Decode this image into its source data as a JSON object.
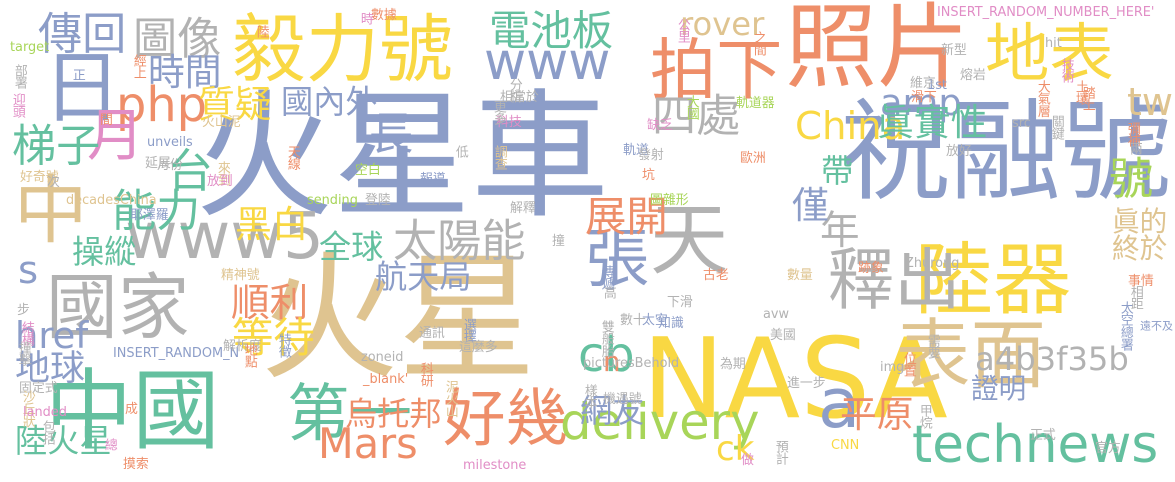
{
  "palette": {
    "orange": "#ee8e69",
    "slate": "#8c9dc8",
    "gold": "#dfc490",
    "yellow": "#f9d843",
    "green": "#64c09f",
    "lime": "#a8d559",
    "pink": "#e18dc6",
    "gray": "#b2b2b2"
  },
  "words": [
    {
      "text": "火星車",
      "color": "slate"
    },
    {
      "text": "火星",
      "color": "gold"
    },
    {
      "text": "祝融號",
      "color": "slate"
    },
    {
      "text": "NASA",
      "color": "yellow"
    },
    {
      "text": "照片",
      "color": "orange"
    },
    {
      "text": "中國",
      "color": "green"
    },
    {
      "text": "毅力號",
      "color": "yellow"
    },
    {
      "text": "國家",
      "color": "gray"
    },
    {
      "text": "陸器",
      "color": "yellow"
    },
    {
      "text": "表面",
      "color": "gold"
    },
    {
      "text": "地表",
      "color": "yellow"
    },
    {
      "text": "張",
      "color": "slate"
    },
    {
      "text": "天",
      "color": "gray"
    },
    {
      "text": "拍下",
      "color": "orange"
    },
    {
      "text": "www5",
      "color": "gray"
    },
    {
      "text": "釋出",
      "color": "gray"
    },
    {
      "text": "technews",
      "color": "green"
    },
    {
      "text": "好幾",
      "color": "orange"
    },
    {
      "text": "日",
      "color": "slate"
    },
    {
      "text": "中",
      "color": "gold"
    },
    {
      "text": "www",
      "color": "slate"
    },
    {
      "text": "第一",
      "color": "green"
    },
    {
      "text": "delivery",
      "color": "lime"
    },
    {
      "text": "電池板",
      "color": "green"
    },
    {
      "text": "圖像",
      "color": "gray"
    },
    {
      "text": "傳回",
      "color": "slate"
    },
    {
      "text": "rover",
      "color": "gold"
    },
    {
      "text": "amp",
      "color": "slate"
    },
    {
      "text": "China",
      "color": "yellow"
    },
    {
      "text": "tw",
      "color": "gold"
    },
    {
      "text": "php",
      "color": "orange"
    },
    {
      "text": "月",
      "color": "pink"
    },
    {
      "text": "梯子",
      "color": "green"
    },
    {
      "text": "能力",
      "color": "green"
    },
    {
      "text": "台",
      "color": "green"
    },
    {
      "text": "四處",
      "color": "gray"
    },
    {
      "text": "太陽能",
      "color": "gray"
    },
    {
      "text": "展開",
      "color": "orange"
    },
    {
      "text": "號",
      "color": "lime"
    },
    {
      "text": "年",
      "color": "gray"
    },
    {
      "text": "cb",
      "color": "green"
    },
    {
      "text": "a",
      "color": "slate"
    },
    {
      "text": "Mars",
      "color": "orange"
    },
    {
      "text": "時間",
      "color": "slate"
    },
    {
      "text": "質疑",
      "color": "yellow"
    },
    {
      "text": "國內外",
      "color": "slate"
    },
    {
      "text": "眞實性",
      "color": "green"
    },
    {
      "text": "帶",
      "color": "green"
    },
    {
      "text": "黑白",
      "color": "yellow"
    },
    {
      "text": "僅",
      "color": "slate"
    },
    {
      "text": "全球",
      "color": "green"
    },
    {
      "text": "航天局",
      "color": "slate"
    },
    {
      "text": "順利",
      "color": "orange"
    },
    {
      "text": "等待",
      "color": "yellow"
    },
    {
      "text": "操縱",
      "color": "green"
    },
    {
      "text": "s",
      "color": "slate"
    },
    {
      "text": "href",
      "color": "slate"
    },
    {
      "text": "地球",
      "color": "slate"
    },
    {
      "text": "陸火星",
      "color": "green"
    },
    {
      "text": "烏托邦",
      "color": "orange"
    },
    {
      "text": "網友",
      "color": "slate"
    },
    {
      "text": "平原",
      "color": "orange"
    },
    {
      "text": "ck",
      "color": "yellow"
    },
    {
      "text": "n",
      "color": "orange"
    },
    {
      "text": "a4b3f35b",
      "color": "gray"
    },
    {
      "text": "證明",
      "color": "slate"
    },
    {
      "text": "終於",
      "color": "gold"
    },
    {
      "text": "眞的",
      "color": "gold"
    },
    {
      "text": "長",
      "color": "slate"
    },
    {
      "text": "INSERT_RANDOM_NUMBER_HERE'",
      "color": "pink"
    },
    {
      "text": "INSERT_RANDOM_N",
      "color": "slate"
    },
    {
      "text": "數據",
      "color": "orange"
    },
    {
      "text": "時",
      "color": "pink"
    },
    {
      "text": "之間",
      "color": "orange"
    },
    {
      "text": "公里",
      "color": "pink"
    },
    {
      "text": "陸",
      "color": "orange"
    },
    {
      "text": "target",
      "color": "lime"
    },
    {
      "text": "部署",
      "color": "gray"
    },
    {
      "text": "迎頭",
      "color": "pink"
    },
    {
      "text": "正",
      "color": "slate"
    },
    {
      "text": "經上",
      "color": "orange"
    },
    {
      "text": "分析",
      "color": "gray"
    },
    {
      "text": "相當於",
      "color": "gray"
    },
    {
      "text": "軌道器",
      "color": "lime"
    },
    {
      "text": "新型",
      "color": "gray"
    },
    {
      "text": "hit",
      "color": "gray"
    },
    {
      "text": "技術",
      "color": "pink"
    },
    {
      "text": "土壤",
      "color": "orange"
    },
    {
      "text": "踏上",
      "color": "orange"
    },
    {
      "text": "熔岩",
      "color": "gray"
    },
    {
      "text": "1st",
      "color": "slate"
    },
    {
      "text": "大氣層",
      "color": "orange"
    },
    {
      "text": "維京",
      "color": "gray"
    },
    {
      "text": "滑下",
      "color": "orange"
    },
    {
      "text": "大國",
      "color": "lime"
    },
    {
      "text": "缺乏",
      "color": "pink"
    },
    {
      "text": "科技",
      "color": "pink"
    },
    {
      "text": "更多",
      "color": "gray"
    },
    {
      "text": "間",
      "color": "orange"
    },
    {
      "text": "unveils",
      "color": "slate"
    },
    {
      "text": "月份",
      "color": "gray"
    },
    {
      "text": "火山泥",
      "color": "gold"
    },
    {
      "text": "天線",
      "color": "orange"
    },
    {
      "text": "延展",
      "color": "gray"
    },
    {
      "text": "來到",
      "color": "gold"
    },
    {
      "text": "低",
      "color": "gray"
    },
    {
      "text": "調查",
      "color": "gold"
    },
    {
      "text": "軌道",
      "color": "slate"
    },
    {
      "text": "發射",
      "color": "gray"
    },
    {
      "text": "坑",
      "color": "orange"
    },
    {
      "text": "歐洲",
      "color": "orange"
    },
    {
      "text": "圖雜形",
      "color": "lime"
    },
    {
      "text": "放好",
      "color": "gray"
    },
    {
      "text": "src",
      "color": "gray"
    },
    {
      "text": "關鍵",
      "color": "gray"
    },
    {
      "text": "彌補",
      "color": "orange"
    },
    {
      "text": "兩",
      "color": "gray"
    },
    {
      "text": "好奇號",
      "color": "gold"
    },
    {
      "text": "次",
      "color": "gray"
    },
    {
      "text": "放到",
      "color": "pink"
    },
    {
      "text": "空白",
      "color": "lime"
    },
    {
      "text": "報導",
      "color": "slate"
    },
    {
      "text": "decadesChina",
      "color": "gold"
    },
    {
      "text": "sending",
      "color": "lime"
    },
    {
      "text": "登陸",
      "color": "gray"
    },
    {
      "text": "解釋",
      "color": "gray"
    },
    {
      "text": "耶澤羅",
      "color": "slate"
    },
    {
      "text": "撞",
      "color": "gray"
    },
    {
      "text": "傳遞",
      "color": "slate"
    },
    {
      "text": "數十",
      "color": "gray"
    },
    {
      "text": "太空",
      "color": "slate"
    },
    {
      "text": "太空總署",
      "color": "slate"
    },
    {
      "text": "相距",
      "color": "gray"
    },
    {
      "text": "精神號",
      "color": "gold"
    },
    {
      "text": "高",
      "color": "gray"
    },
    {
      "text": "下滑",
      "color": "gray"
    },
    {
      "text": "古老",
      "color": "orange"
    },
    {
      "text": "數量",
      "color": "gold"
    },
    {
      "text": "跡象",
      "color": "orange"
    },
    {
      "text": "Zhurong",
      "color": "gray"
    },
    {
      "text": "事情",
      "color": "orange"
    },
    {
      "text": "遠不及",
      "color": "slate"
    },
    {
      "text": "步",
      "color": "gray"
    },
    {
      "text": "結構",
      "color": "pink"
    },
    {
      "text": "撞擊",
      "color": "gray"
    },
    {
      "text": "通訊",
      "color": "gray"
    },
    {
      "text": "解析度",
      "color": "gray"
    },
    {
      "text": "地點",
      "color": "orange"
    },
    {
      "text": "特徵",
      "color": "slate"
    },
    {
      "text": "選擇",
      "color": "slate"
    },
    {
      "text": "這麼多",
      "color": "gray"
    },
    {
      "text": "雙般胎",
      "color": "gray"
    },
    {
      "text": "知識",
      "color": "slate"
    },
    {
      "text": "avw",
      "color": "gray"
    },
    {
      "text": "美國",
      "color": "gray"
    },
    {
      "text": "科研",
      "color": "orange"
    },
    {
      "text": "zoneid",
      "color": "gray"
    },
    {
      "text": "泥火山",
      "color": "gold"
    },
    {
      "text": "picturesBehold",
      "color": "gray"
    },
    {
      "text": "為期",
      "color": "gray"
    },
    {
      "text": "img",
      "color": "gray"
    },
    {
      "text": "位置",
      "color": "orange"
    },
    {
      "text": "需要",
      "color": "gray"
    },
    {
      "text": "固定式",
      "color": "gray"
    },
    {
      "text": "_blank'",
      "color": "orange"
    },
    {
      "text": "沙丘狀",
      "color": "gold"
    },
    {
      "text": "landed",
      "color": "pink"
    },
    {
      "text": "包括",
      "color": "gray"
    },
    {
      "text": "成",
      "color": "orange"
    },
    {
      "text": "樣本",
      "color": "gray"
    },
    {
      "text": "機遇號",
      "color": "gray"
    },
    {
      "text": "進一步",
      "color": "gray"
    },
    {
      "text": "甲烷",
      "color": "gray"
    },
    {
      "text": "總",
      "color": "pink"
    },
    {
      "text": "預計",
      "color": "gray"
    },
    {
      "text": "官方",
      "color": "gray"
    },
    {
      "text": "正式",
      "color": "gray"
    },
    {
      "text": "摸索",
      "color": "orange"
    },
    {
      "text": "做",
      "color": "pink"
    },
    {
      "text": "CNN",
      "color": "yellow"
    },
    {
      "text": "milestone",
      "color": "pink"
    }
  ]
}
